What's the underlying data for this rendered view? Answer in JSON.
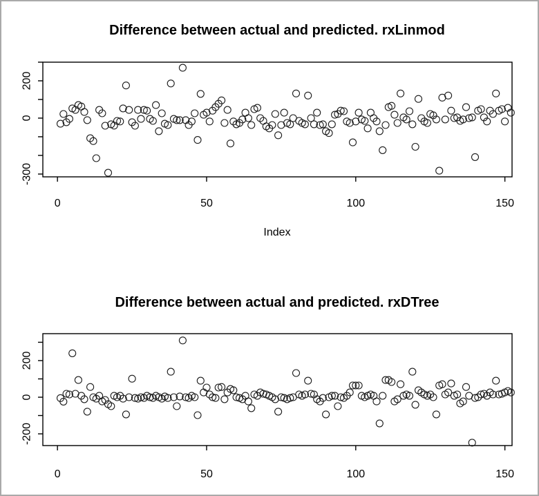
{
  "frame": {
    "background": "#ffffff",
    "border_color": "#a9a9a9",
    "point_color": "#1a1a1a"
  },
  "chart_data": [
    {
      "type": "scatter",
      "title": "Difference between actual and predicted. rxLinmod",
      "xlabel": "Index",
      "ylabel": "",
      "marker": "open-circle",
      "grid": "off",
      "x_is_index_from": 1,
      "xlim": [
        -4.9,
        152.4
      ],
      "ylim": [
        -315,
        300
      ],
      "x_ticks": [
        {
          "v": 0,
          "label": "0"
        },
        {
          "v": 50,
          "label": "50"
        },
        {
          "v": 100,
          "label": "100"
        },
        {
          "v": 150,
          "label": "150"
        }
      ],
      "y_ticks": [
        {
          "v": 300,
          "label": ""
        },
        {
          "v": 200,
          "label": "200"
        },
        {
          "v": 100,
          "label": ""
        },
        {
          "v": 0,
          "label": "0"
        },
        {
          "v": -100,
          "label": ""
        },
        {
          "v": -200,
          "label": ""
        },
        {
          "v": -300,
          "label": "-300"
        }
      ],
      "values": [
        -30,
        22,
        -22,
        -4,
        52,
        44,
        70,
        62,
        33,
        -11,
        -108,
        -123,
        -215,
        44,
        26,
        -41,
        -293,
        -33,
        -40,
        -15,
        -18,
        52,
        175,
        44,
        -22,
        -41,
        44,
        -4,
        44,
        40,
        -4,
        -15,
        70,
        -70,
        26,
        -30,
        -37,
        186,
        -4,
        -11,
        -11,
        270,
        -11,
        -37,
        -18,
        26,
        -117,
        130,
        18,
        29,
        -18,
        40,
        59,
        77,
        95,
        -26,
        44,
        -136,
        -18,
        -33,
        -26,
        -7,
        29,
        0,
        -37,
        48,
        55,
        0,
        -15,
        -44,
        -55,
        -37,
        22,
        -92,
        -37,
        29,
        -26,
        -33,
        0,
        132,
        -15,
        -26,
        -33,
        121,
        0,
        -33,
        29,
        -37,
        -33,
        -70,
        -80,
        -33,
        18,
        22,
        40,
        37,
        -18,
        -26,
        -130,
        -18,
        29,
        -7,
        -15,
        -55,
        29,
        0,
        -18,
        -70,
        -172,
        -37,
        59,
        66,
        18,
        -26,
        132,
        4,
        -7,
        37,
        -33,
        -154,
        103,
        0,
        -18,
        -26,
        22,
        15,
        -7,
        -282,
        110,
        -7,
        121,
        40,
        0,
        4,
        -15,
        -7,
        59,
        0,
        4,
        -209,
        40,
        48,
        4,
        -18,
        40,
        22,
        132,
        40,
        48,
        -18,
        55,
        29
      ]
    },
    {
      "type": "scatter",
      "title": "Difference between actual and predicted. rxDTree",
      "xlabel": "",
      "ylabel": "",
      "marker": "open-circle",
      "grid": "off",
      "x_is_index_from": 1,
      "xlim": [
        -4.9,
        152.4
      ],
      "ylim": [
        -264,
        347
      ],
      "x_ticks": [
        {
          "v": 0,
          "label": "0"
        },
        {
          "v": 50,
          "label": "50"
        },
        {
          "v": 100,
          "label": "100"
        },
        {
          "v": 150,
          "label": "150"
        }
      ],
      "y_ticks": [
        {
          "v": 300,
          "label": ""
        },
        {
          "v": 200,
          "label": "200"
        },
        {
          "v": 100,
          "label": ""
        },
        {
          "v": 0,
          "label": "0"
        },
        {
          "v": -100,
          "label": ""
        },
        {
          "v": -200,
          "label": "-200"
        }
      ],
      "values": [
        -5,
        -24,
        19,
        15,
        240,
        19,
        94,
        8,
        -11,
        -79,
        56,
        0,
        -8,
        8,
        -23,
        -15,
        -38,
        -49,
        8,
        0,
        8,
        -8,
        -94,
        0,
        101,
        -4,
        -8,
        0,
        -4,
        8,
        0,
        -4,
        8,
        0,
        -8,
        4,
        -4,
        139,
        0,
        -49,
        4,
        310,
        0,
        -4,
        8,
        0,
        -98,
        90,
        26,
        53,
        15,
        0,
        -4,
        53,
        56,
        -11,
        26,
        45,
        38,
        0,
        -4,
        -11,
        8,
        -23,
        -60,
        15,
        8,
        26,
        19,
        15,
        8,
        0,
        -11,
        -79,
        0,
        -4,
        -11,
        -4,
        0,
        132,
        15,
        8,
        15,
        90,
        19,
        15,
        -11,
        -23,
        -4,
        -94,
        0,
        8,
        8,
        -49,
        0,
        -4,
        8,
        26,
        64,
        64,
        64,
        8,
        0,
        8,
        15,
        8,
        -23,
        -143,
        8,
        94,
        94,
        83,
        -23,
        -11,
        71,
        8,
        15,
        8,
        139,
        -41,
        38,
        26,
        15,
        8,
        15,
        0,
        -94,
        64,
        71,
        15,
        26,
        75,
        8,
        15,
        -34,
        -23,
        56,
        8,
        -248,
        -4,
        0,
        15,
        19,
        8,
        26,
        15,
        90,
        15,
        19,
        26,
        34,
        26
      ]
    }
  ]
}
